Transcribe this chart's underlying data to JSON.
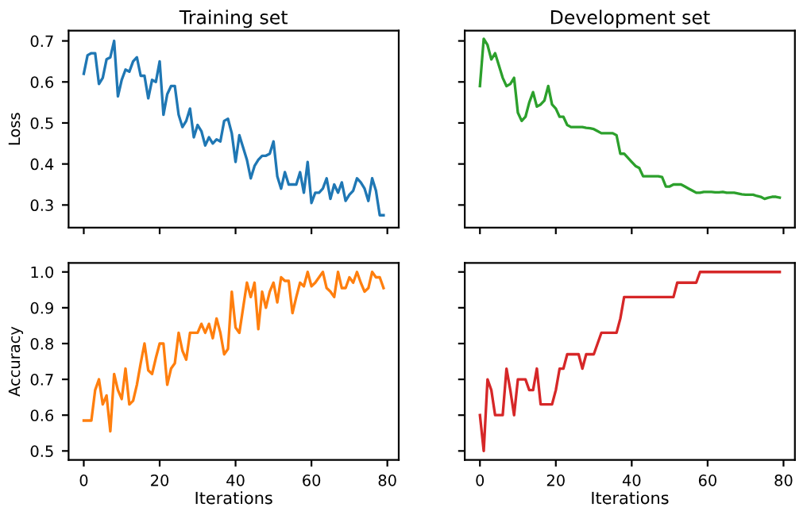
{
  "chart_data": [
    {
      "type": "line",
      "title": "Training set",
      "ylabel": "Loss",
      "xlim": [
        -4,
        83
      ],
      "xticks": [
        0,
        20,
        40,
        60,
        80
      ],
      "ylim": [
        0.245,
        0.725
      ],
      "yticks": [
        0.3,
        0.4,
        0.5,
        0.6,
        0.7
      ],
      "tick_labels": "y",
      "grid": false,
      "legend": false,
      "x": [
        0,
        1,
        2,
        3,
        4,
        5,
        6,
        7,
        8,
        9,
        10,
        11,
        12,
        13,
        14,
        15,
        16,
        17,
        18,
        19,
        20,
        21,
        22,
        23,
        24,
        25,
        26,
        27,
        28,
        29,
        30,
        31,
        32,
        33,
        34,
        35,
        36,
        37,
        38,
        39,
        40,
        41,
        42,
        43,
        44,
        45,
        46,
        47,
        48,
        49,
        50,
        51,
        52,
        53,
        54,
        55,
        56,
        57,
        58,
        59,
        60,
        61,
        62,
        63,
        64,
        65,
        66,
        67,
        68,
        69,
        70,
        71,
        72,
        73,
        74,
        75,
        76,
        77,
        78,
        79
      ],
      "series": [
        {
          "color": "#1f77b4",
          "values": [
            0.62,
            0.665,
            0.67,
            0.67,
            0.595,
            0.61,
            0.655,
            0.66,
            0.7,
            0.565,
            0.605,
            0.63,
            0.625,
            0.65,
            0.66,
            0.615,
            0.615,
            0.56,
            0.605,
            0.6,
            0.65,
            0.52,
            0.57,
            0.59,
            0.59,
            0.52,
            0.49,
            0.505,
            0.535,
            0.465,
            0.495,
            0.48,
            0.445,
            0.465,
            0.45,
            0.46,
            0.455,
            0.505,
            0.51,
            0.475,
            0.405,
            0.47,
            0.44,
            0.41,
            0.365,
            0.395,
            0.41,
            0.42,
            0.42,
            0.425,
            0.455,
            0.37,
            0.34,
            0.38,
            0.35,
            0.35,
            0.35,
            0.38,
            0.33,
            0.405,
            0.305,
            0.33,
            0.33,
            0.34,
            0.365,
            0.315,
            0.35,
            0.33,
            0.355,
            0.31,
            0.325,
            0.335,
            0.365,
            0.355,
            0.34,
            0.31,
            0.365,
            0.335,
            0.275,
            0.275
          ]
        }
      ]
    },
    {
      "type": "line",
      "title": "Development set",
      "xlim": [
        -4,
        83
      ],
      "xticks": [
        0,
        20,
        40,
        60,
        80
      ],
      "ylim": [
        0.245,
        0.725
      ],
      "yticks": [
        0.3,
        0.4,
        0.5,
        0.6,
        0.7
      ],
      "tick_labels": false,
      "grid": false,
      "legend": false,
      "x": [
        0,
        1,
        2,
        3,
        4,
        5,
        6,
        7,
        8,
        9,
        10,
        11,
        12,
        13,
        14,
        15,
        16,
        17,
        18,
        19,
        20,
        21,
        22,
        23,
        24,
        25,
        26,
        27,
        28,
        29,
        30,
        31,
        32,
        33,
        34,
        35,
        36,
        37,
        38,
        39,
        40,
        41,
        42,
        43,
        44,
        45,
        46,
        47,
        48,
        49,
        50,
        51,
        52,
        53,
        54,
        55,
        56,
        57,
        58,
        59,
        60,
        61,
        62,
        63,
        64,
        65,
        66,
        67,
        68,
        69,
        70,
        71,
        72,
        73,
        74,
        75,
        76,
        77,
        78,
        79
      ],
      "series": [
        {
          "color": "#2ca02c",
          "values": [
            0.59,
            0.705,
            0.69,
            0.655,
            0.67,
            0.64,
            0.61,
            0.59,
            0.595,
            0.61,
            0.525,
            0.505,
            0.515,
            0.55,
            0.575,
            0.54,
            0.545,
            0.555,
            0.59,
            0.545,
            0.535,
            0.515,
            0.515,
            0.495,
            0.49,
            0.49,
            0.49,
            0.49,
            0.488,
            0.487,
            0.485,
            0.48,
            0.475,
            0.475,
            0.475,
            0.475,
            0.47,
            0.425,
            0.425,
            0.415,
            0.405,
            0.395,
            0.39,
            0.37,
            0.37,
            0.37,
            0.37,
            0.37,
            0.368,
            0.345,
            0.345,
            0.35,
            0.35,
            0.35,
            0.345,
            0.34,
            0.335,
            0.33,
            0.33,
            0.332,
            0.332,
            0.332,
            0.331,
            0.331,
            0.332,
            0.33,
            0.33,
            0.33,
            0.328,
            0.326,
            0.325,
            0.325,
            0.325,
            0.322,
            0.32,
            0.315,
            0.318,
            0.32,
            0.32,
            0.318
          ]
        }
      ]
    },
    {
      "type": "line",
      "ylabel": "Accuracy",
      "xlabel": "Iterations",
      "xlim": [
        -4,
        83
      ],
      "xticks": [
        0,
        20,
        40,
        60,
        80
      ],
      "ylim": [
        0.475,
        1.025
      ],
      "yticks": [
        0.5,
        0.6,
        0.7,
        0.8,
        0.9,
        {
          "value": 1.0,
          "label": "1.0"
        }
      ],
      "grid": false,
      "legend": false,
      "x": [
        0,
        1,
        2,
        3,
        4,
        5,
        6,
        7,
        8,
        9,
        10,
        11,
        12,
        13,
        14,
        15,
        16,
        17,
        18,
        19,
        20,
        21,
        22,
        23,
        24,
        25,
        26,
        27,
        28,
        29,
        30,
        31,
        32,
        33,
        34,
        35,
        36,
        37,
        38,
        39,
        40,
        41,
        42,
        43,
        44,
        45,
        46,
        47,
        48,
        49,
        50,
        51,
        52,
        53,
        54,
        55,
        56,
        57,
        58,
        59,
        60,
        61,
        62,
        63,
        64,
        65,
        66,
        67,
        68,
        69,
        70,
        71,
        72,
        73,
        74,
        75,
        76,
        77,
        78,
        79
      ],
      "series": [
        {
          "color": "#ff7f0e",
          "values": [
            0.585,
            0.585,
            0.585,
            0.67,
            0.7,
            0.63,
            0.655,
            0.555,
            0.715,
            0.67,
            0.645,
            0.73,
            0.63,
            0.64,
            0.685,
            0.745,
            0.8,
            0.725,
            0.715,
            0.76,
            0.8,
            0.8,
            0.685,
            0.73,
            0.745,
            0.83,
            0.78,
            0.755,
            0.83,
            0.83,
            0.83,
            0.855,
            0.83,
            0.855,
            0.815,
            0.87,
            0.83,
            0.77,
            0.785,
            0.945,
            0.845,
            0.83,
            0.9,
            0.97,
            0.93,
            0.97,
            0.84,
            0.945,
            0.9,
            0.945,
            0.97,
            0.915,
            0.985,
            0.975,
            0.975,
            0.885,
            0.93,
            0.97,
            0.96,
            1.0,
            0.96,
            0.97,
            0.985,
            1.0,
            0.955,
            0.945,
            0.93,
            1.0,
            0.955,
            0.955,
            0.985,
            0.97,
            1.0,
            0.97,
            0.945,
            0.955,
            1.0,
            0.985,
            0.985,
            0.955
          ]
        }
      ]
    },
    {
      "type": "line",
      "xlabel": "Iterations",
      "xlim": [
        -4,
        83
      ],
      "xticks": [
        0,
        20,
        40,
        60,
        80
      ],
      "ylim": [
        0.475,
        1.025
      ],
      "yticks": [
        0.5,
        0.6,
        0.7,
        0.8,
        0.9,
        {
          "value": 1.0,
          "label": null
        }
      ],
      "tick_labels": "x",
      "grid": false,
      "legend": false,
      "x": [
        0,
        1,
        2,
        3,
        4,
        5,
        6,
        7,
        8,
        9,
        10,
        11,
        12,
        13,
        14,
        15,
        16,
        17,
        18,
        19,
        20,
        21,
        22,
        23,
        24,
        25,
        26,
        27,
        28,
        29,
        30,
        31,
        32,
        33,
        34,
        35,
        36,
        37,
        38,
        39,
        40,
        41,
        42,
        43,
        44,
        45,
        46,
        47,
        48,
        49,
        50,
        51,
        52,
        53,
        54,
        55,
        56,
        57,
        58,
        59,
        60,
        61,
        62,
        63,
        64,
        65,
        66,
        67,
        68,
        69,
        70,
        71,
        72,
        73,
        74,
        75,
        76,
        77,
        78,
        79
      ],
      "series": [
        {
          "color": "#d62728",
          "values": [
            0.6,
            0.5,
            0.7,
            0.67,
            0.6,
            0.6,
            0.6,
            0.73,
            0.67,
            0.6,
            0.7,
            0.7,
            0.7,
            0.67,
            0.67,
            0.73,
            0.63,
            0.63,
            0.63,
            0.63,
            0.67,
            0.73,
            0.73,
            0.77,
            0.77,
            0.77,
            0.77,
            0.73,
            0.77,
            0.77,
            0.77,
            0.8,
            0.83,
            0.83,
            0.83,
            0.83,
            0.83,
            0.87,
            0.93,
            0.93,
            0.93,
            0.93,
            0.93,
            0.93,
            0.93,
            0.93,
            0.93,
            0.93,
            0.93,
            0.93,
            0.93,
            0.93,
            0.97,
            0.97,
            0.97,
            0.97,
            0.97,
            0.97,
            1.0,
            1.0,
            1.0,
            1.0,
            1.0,
            1.0,
            1.0,
            1.0,
            1.0,
            1.0,
            1.0,
            1.0,
            1.0,
            1.0,
            1.0,
            1.0,
            1.0,
            1.0,
            1.0,
            1.0,
            1.0,
            1.0
          ]
        }
      ]
    }
  ]
}
